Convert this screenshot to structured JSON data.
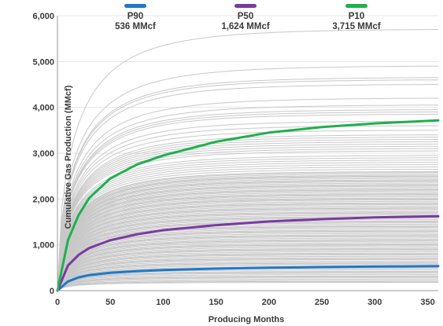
{
  "chart_data": {
    "type": "line",
    "xlabel": "Producing Months",
    "ylabel": "Cumulative Gas Production (MMcf)",
    "xlim": [
      0,
      360
    ],
    "ylim": [
      0,
      6000
    ],
    "xticks": [
      0,
      50,
      100,
      150,
      200,
      250,
      300,
      350
    ],
    "yticks": [
      0,
      1000,
      2000,
      3000,
      4000,
      5000,
      6000
    ],
    "xtick_labels": [
      "0",
      "50",
      "100",
      "150",
      "200",
      "250",
      "300",
      "350"
    ],
    "ytick_labels": [
      "0",
      "1,000",
      "2,000",
      "3,000",
      "4,000",
      "5,000",
      "6,000"
    ],
    "grid": "horizontal",
    "legend_position": "top",
    "background_series": {
      "color": "#c8c8c8",
      "final_values": [
        5700,
        4900,
        4650,
        4600,
        4500,
        4200,
        4050,
        3950,
        3900,
        3850,
        3700,
        3600,
        3500,
        3400,
        3350,
        3300,
        3250,
        3200,
        3150,
        3100,
        3050,
        2950,
        2900,
        2850,
        2800,
        2750,
        2700,
        2650,
        2600,
        2580,
        2550,
        2520,
        2500,
        2480,
        2450,
        2420,
        2400,
        2380,
        2350,
        2320,
        2300,
        2280,
        2250,
        2220,
        2200,
        2180,
        2150,
        2120,
        2100,
        2080,
        2050,
        2020,
        2000,
        1980,
        1950,
        1920,
        1900,
        1880,
        1850,
        1820,
        1800,
        1780,
        1750,
        1720,
        1700,
        1680,
        1650,
        1620,
        1600,
        1580,
        1550,
        1520,
        1500,
        1480,
        1450,
        1420,
        1400,
        1380,
        1350,
        1320,
        1300,
        1280,
        1250,
        1220,
        1200,
        1180,
        1150,
        1120,
        1100,
        1080,
        1050,
        1020,
        1000,
        980,
        950,
        920,
        900,
        880,
        850,
        820,
        800,
        780,
        750,
        720,
        700,
        680,
        650,
        620,
        600,
        580,
        550,
        520,
        500,
        480,
        450,
        420,
        400,
        380,
        350,
        320,
        300,
        280,
        250,
        220,
        200,
        180
      ]
    },
    "series": [
      {
        "name": "P90",
        "value_label": "536 MMcf",
        "color": "#1f78c8",
        "x": [
          0,
          10,
          20,
          30,
          50,
          75,
          100,
          150,
          200,
          250,
          300,
          360
        ],
        "y": [
          0,
          200,
          290,
          340,
          390,
          425,
          450,
          480,
          500,
          515,
          527,
          536
        ]
      },
      {
        "name": "P50",
        "value_label": "1,624 MMcf",
        "color": "#7a3aa0",
        "x": [
          0,
          10,
          20,
          30,
          50,
          75,
          100,
          150,
          200,
          250,
          300,
          360
        ],
        "y": [
          0,
          550,
          780,
          930,
          1100,
          1230,
          1320,
          1430,
          1510,
          1560,
          1600,
          1624
        ]
      },
      {
        "name": "P10",
        "value_label": "3,715 MMcf",
        "color": "#1fb04c",
        "x": [
          0,
          10,
          20,
          30,
          50,
          75,
          100,
          150,
          200,
          250,
          300,
          360
        ],
        "y": [
          0,
          1100,
          1650,
          2020,
          2450,
          2750,
          2950,
          3250,
          3450,
          3570,
          3650,
          3715
        ]
      }
    ]
  }
}
